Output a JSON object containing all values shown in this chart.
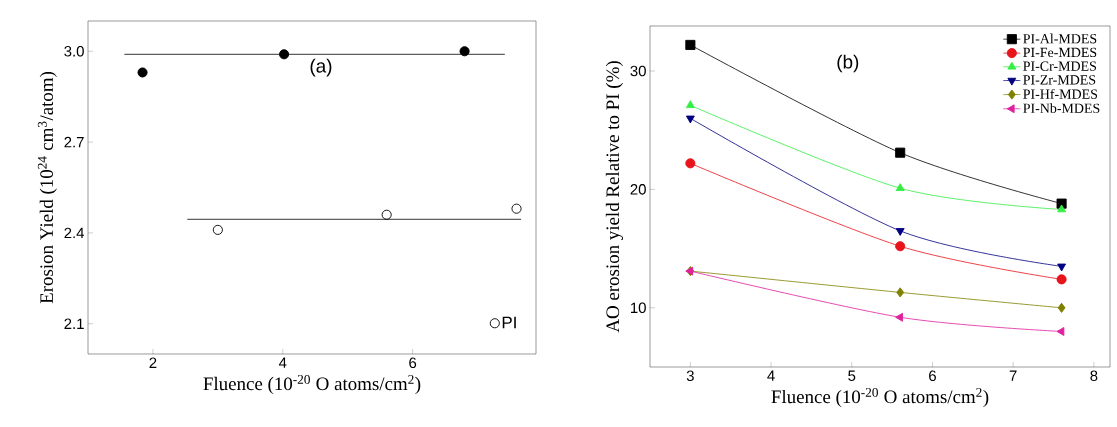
{
  "chart_data": [
    {
      "type": "scatter",
      "xlabel": "Fluence (10$^{-20}$ O atoms/cm$^{2}$)",
      "ylabel": "Erosion Yield (10$^{24}$ cm$^{3}$/atom)",
      "annotations": [
        "(a)"
      ],
      "xlim": [
        1,
        7.9
      ],
      "ylim": [
        2.0,
        3.1
      ],
      "xticks": [
        2,
        4,
        6
      ],
      "yticks": [
        {
          "value": 2.1,
          "label": "2.1"
        },
        {
          "value": 2.4,
          "label": "2.4"
        },
        {
          "value": 2.7,
          "label": "2.7"
        },
        {
          "value": 3.0,
          "label": "3.0"
        }
      ],
      "legend": "bottom right",
      "grid": false,
      "series": [
        {
          "color": "#000000",
          "marker": "circle",
          "x": [
            1.84,
            4.02,
            6.8
          ],
          "values": [
            2.93,
            2.99,
            3.0
          ]
        },
        {
          "name": "PI",
          "color": "#000000",
          "marker": "open circle",
          "x": [
            3.0,
            5.6,
            7.6
          ],
          "values": [
            2.41,
            2.46,
            2.48
          ]
        },
        {
          "type": "line",
          "color": "#000000",
          "marker": "none",
          "line_style": "solid",
          "x": [
            1.56,
            7.42
          ],
          "values": [
            2.99,
            2.99
          ]
        },
        {
          "type": "line",
          "color": "#000000",
          "marker": "none",
          "line_style": "solid",
          "x": [
            2.53,
            7.67
          ],
          "values": [
            2.445,
            2.445
          ]
        }
      ]
    },
    {
      "type": "line",
      "xlabel": "Fluence (10$^{-20}$ O atoms/cm$^{2}$)",
      "ylabel": "AO erosion yield Relative to PI (%)",
      "annotations": [
        "(b)"
      ],
      "xlim": [
        2.5,
        8.2
      ],
      "ylim": [
        5,
        33.8
      ],
      "xticks": [
        3,
        4,
        5,
        6,
        7,
        8
      ],
      "yticks": [
        10,
        20,
        30
      ],
      "legend": "top right",
      "grid": false,
      "line_style": "solid",
      "x": [
        3,
        5.6,
        7.6
      ],
      "series": [
        {
          "name": "PI-Al-MDES",
          "color": "#000000",
          "marker": "square",
          "values": [
            32.2,
            23.1,
            18.8
          ]
        },
        {
          "name": "PI-Fe-MDES",
          "color": "#e8141c",
          "marker": "circle",
          "values": [
            22.2,
            15.2,
            12.4
          ]
        },
        {
          "name": "PI-Cr-MDES",
          "color": "#33ee44",
          "marker": "triangle",
          "values": [
            27.1,
            20.1,
            18.3
          ]
        },
        {
          "name": "PI-Zr-MDES",
          "color": "#000080",
          "marker": "triangle down",
          "values": [
            26.0,
            16.5,
            13.5
          ]
        },
        {
          "name": "PI-Hf-MDES",
          "color": "#808000",
          "marker": "diamond",
          "values": [
            13.1,
            11.3,
            10.0
          ]
        },
        {
          "name": "PI-Nb-MDES",
          "color": "#e0209f",
          "marker": "triangle left",
          "values": [
            13.1,
            9.2,
            8.0
          ]
        }
      ]
    }
  ]
}
